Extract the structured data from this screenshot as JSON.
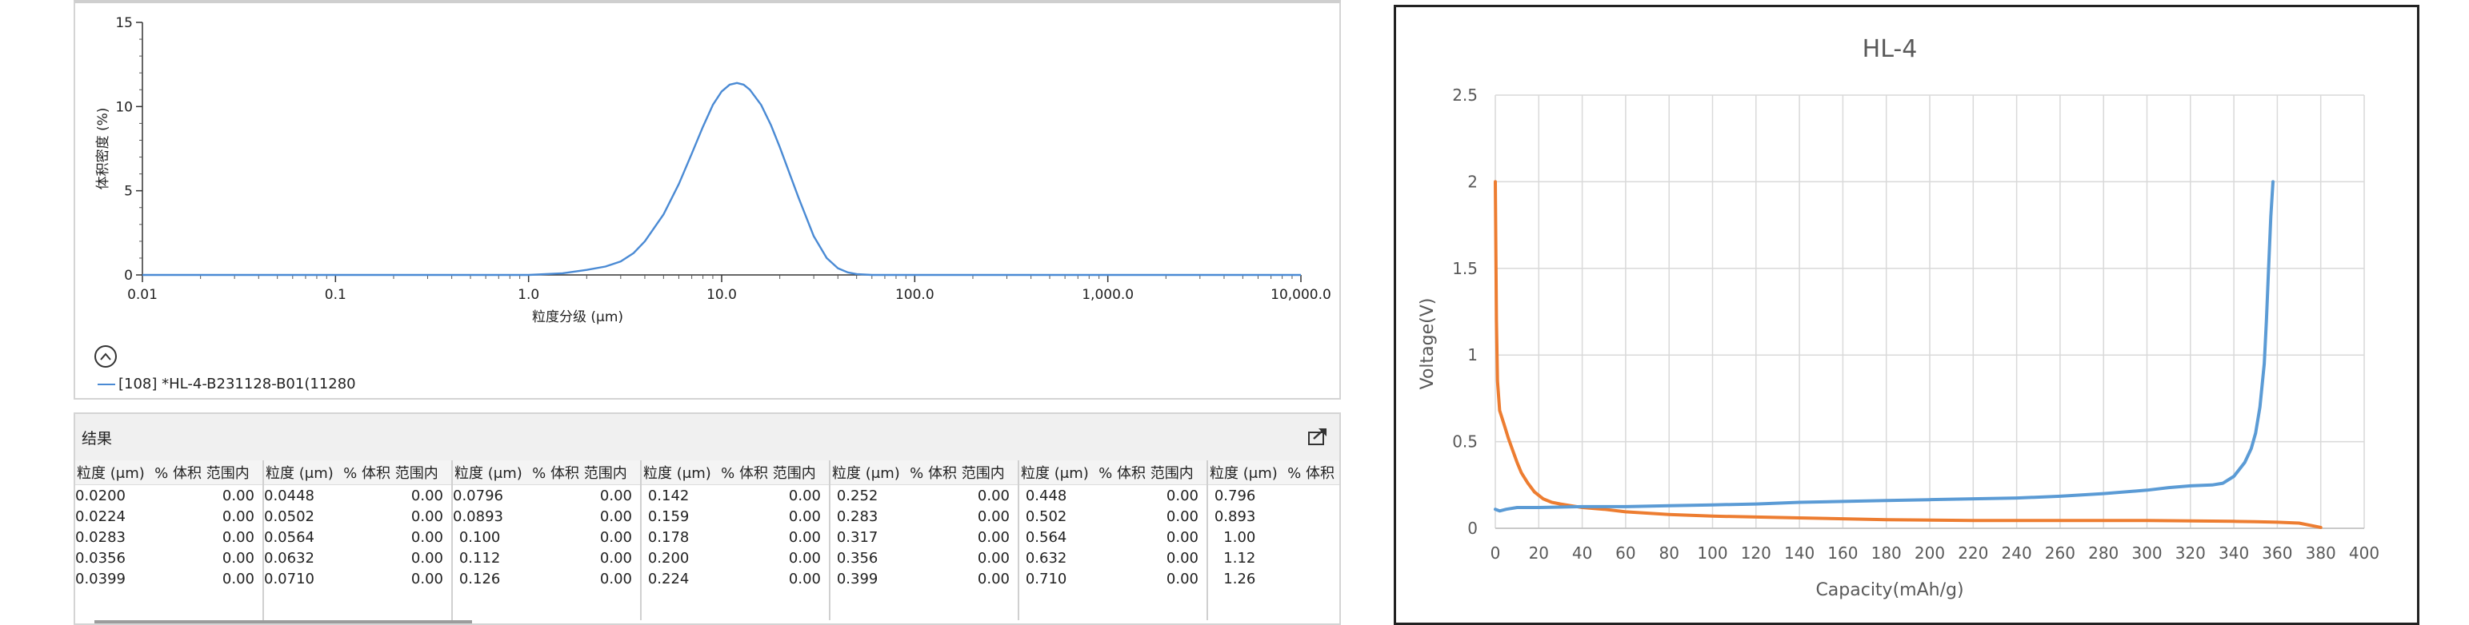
{
  "psd_chart": {
    "ylabel": "体积密度 (%)",
    "xlabel": "粒度分级 (μm)",
    "legend_label": "[108] *HL-4-B231128-B01(11280",
    "collapse_icon": "chevron-up-icon",
    "line_color": "#4a8ad4"
  },
  "results": {
    "title": "结果",
    "export_icon": "export-icon",
    "col_size": "粒度 (μm)",
    "col_pct": "% 体积 范围内",
    "groups": [
      {
        "sizes": [
          "0.0200",
          "0.0224",
          "0.0283",
          "0.0356",
          "0.0399"
        ],
        "pcts": [
          "0.00",
          "0.00",
          "0.00",
          "0.00",
          "0.00"
        ]
      },
      {
        "sizes": [
          "0.0448",
          "0.0502",
          "0.0564",
          "0.0632",
          "0.0710"
        ],
        "pcts": [
          "0.00",
          "0.00",
          "0.00",
          "0.00",
          "0.00"
        ]
      },
      {
        "sizes": [
          "0.0796",
          "0.0893",
          "0.100",
          "0.112",
          "0.126"
        ],
        "pcts": [
          "0.00",
          "0.00",
          "0.00",
          "0.00",
          "0.00"
        ]
      },
      {
        "sizes": [
          "0.142",
          "0.159",
          "0.178",
          "0.200",
          "0.224"
        ],
        "pcts": [
          "0.00",
          "0.00",
          "0.00",
          "0.00",
          "0.00"
        ]
      },
      {
        "sizes": [
          "0.252",
          "0.283",
          "0.317",
          "0.356",
          "0.399"
        ],
        "pcts": [
          "0.00",
          "0.00",
          "0.00",
          "0.00",
          "0.00"
        ]
      },
      {
        "sizes": [
          "0.448",
          "0.502",
          "0.564",
          "0.632",
          "0.710"
        ],
        "pcts": [
          "0.00",
          "0.00",
          "0.00",
          "0.00",
          "0.00"
        ]
      },
      {
        "sizes": [
          "0.796",
          "0.893",
          "1.00",
          "1.12",
          "1.26"
        ],
        "pcts": [
          "",
          "",
          "",
          "",
          ""
        ]
      }
    ]
  },
  "chart_data": [
    {
      "type": "line",
      "title": "",
      "xlabel": "粒度分级 (μm)",
      "ylabel": "体积密度 (%)",
      "x_scale": "log",
      "xlim": [
        0.01,
        10000
      ],
      "ylim": [
        0,
        15
      ],
      "x_ticks": [
        "0.01",
        "0.1",
        "1.0",
        "10.0",
        "100.0",
        "1,000.0",
        "10,000.0"
      ],
      "y_ticks": [
        "0",
        "5",
        "10",
        "15"
      ],
      "series": [
        {
          "color": "#4a8ad4",
          "x": [
            0.01,
            1.0,
            1.5,
            2.0,
            2.5,
            3.0,
            3.5,
            4.0,
            5.0,
            6.0,
            7.0,
            8.0,
            9.0,
            10.0,
            11.0,
            12.0,
            13.0,
            14.0,
            16.0,
            18.0,
            20.0,
            25.0,
            30.0,
            35.0,
            40.0,
            45.0,
            50.0,
            60.0,
            10000
          ],
          "y": [
            0,
            0,
            0.1,
            0.3,
            0.5,
            0.8,
            1.3,
            2.0,
            3.6,
            5.4,
            7.2,
            8.8,
            10.1,
            10.9,
            11.3,
            11.4,
            11.3,
            11.0,
            10.1,
            8.9,
            7.6,
            4.6,
            2.3,
            1.0,
            0.4,
            0.15,
            0.05,
            0,
            0
          ]
        }
      ]
    },
    {
      "type": "line",
      "title": "HL-4",
      "xlabel": "Capacity(mAh/g)",
      "ylabel": "Voltage(V)",
      "xlim": [
        0,
        400
      ],
      "ylim": [
        0,
        2.5
      ],
      "x_ticks": [
        "0",
        "20",
        "40",
        "60",
        "80",
        "100",
        "120",
        "140",
        "160",
        "180",
        "200",
        "220",
        "240",
        "260",
        "280",
        "300",
        "320",
        "340",
        "360",
        "380",
        "400"
      ],
      "y_ticks": [
        "0",
        "0.5",
        "1",
        "1.5",
        "2",
        "2.5"
      ],
      "grid": true,
      "series": [
        {
          "color": "#ed7d31",
          "x": [
            0,
            0.5,
            1,
            2,
            4,
            6,
            8,
            10,
            12,
            15,
            18,
            22,
            26,
            30,
            35,
            40,
            50,
            60,
            80,
            100,
            140,
            180,
            220,
            260,
            300,
            340,
            350,
            360,
            370,
            378,
            380
          ],
          "y": [
            2.0,
            1.2,
            0.85,
            0.68,
            0.6,
            0.52,
            0.45,
            0.38,
            0.32,
            0.26,
            0.21,
            0.17,
            0.15,
            0.14,
            0.13,
            0.12,
            0.11,
            0.095,
            0.08,
            0.07,
            0.06,
            0.05,
            0.045,
            0.045,
            0.045,
            0.04,
            0.038,
            0.035,
            0.03,
            0.01,
            0.005
          ]
        },
        {
          "color": "#5b9bd5",
          "x": [
            0,
            2,
            5,
            10,
            20,
            40,
            60,
            80,
            100,
            120,
            140,
            160,
            180,
            200,
            220,
            240,
            260,
            280,
            300,
            310,
            320,
            330,
            335,
            340,
            345,
            348,
            350,
            352,
            354,
            355,
            356,
            357,
            358
          ],
          "y": [
            0.11,
            0.1,
            0.11,
            0.12,
            0.12,
            0.125,
            0.125,
            0.13,
            0.135,
            0.14,
            0.15,
            0.155,
            0.16,
            0.165,
            0.17,
            0.175,
            0.185,
            0.2,
            0.22,
            0.235,
            0.245,
            0.25,
            0.26,
            0.3,
            0.38,
            0.46,
            0.55,
            0.7,
            0.95,
            1.2,
            1.5,
            1.8,
            2.0
          ]
        }
      ]
    }
  ]
}
